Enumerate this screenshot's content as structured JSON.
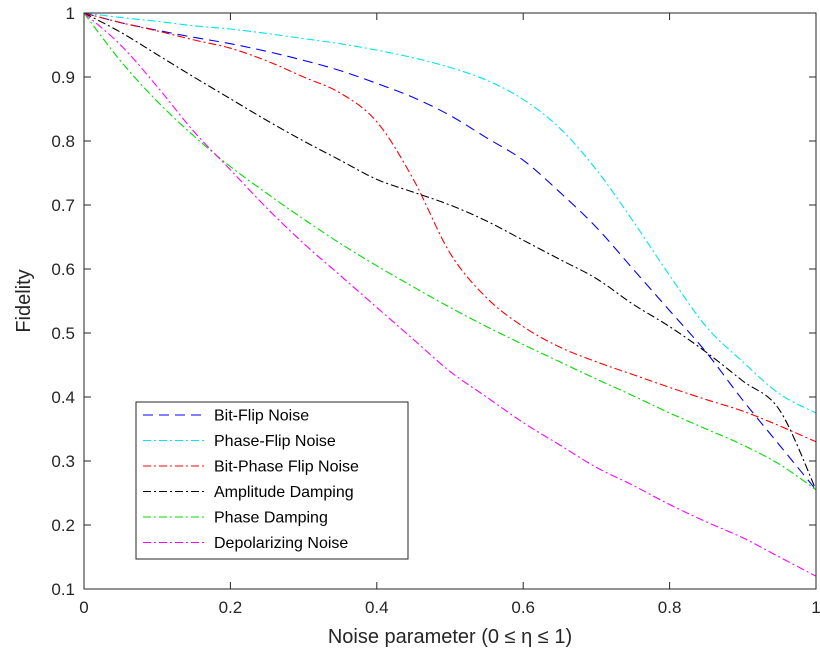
{
  "chart_data": {
    "type": "line",
    "title": "",
    "xlabel": "Noise parameter (0 ≤ η ≤ 1)",
    "ylabel": "Fidelity",
    "xlim": [
      0,
      1
    ],
    "ylim": [
      0.1,
      1
    ],
    "xticks": [
      "0",
      "0.2",
      "0.4",
      "0.6",
      "0.8",
      "1"
    ],
    "yticks": [
      "0.1",
      "0.2",
      "0.3",
      "0.4",
      "0.5",
      "0.6",
      "0.7",
      "0.8",
      "0.9",
      "1"
    ],
    "grid": false,
    "legend_position": "bottom-left",
    "x": [
      0,
      0.05,
      0.1,
      0.15,
      0.2,
      0.25,
      0.3,
      0.35,
      0.4,
      0.45,
      0.5,
      0.55,
      0.6,
      0.65,
      0.7,
      0.75,
      0.8,
      0.85,
      0.9,
      0.95,
      1
    ],
    "series": [
      {
        "name": "Bit-Flip Noise",
        "color": "#0000ff",
        "dash": "dash",
        "values": [
          1.0,
          0.985,
          0.973,
          0.962,
          0.952,
          0.94,
          0.926,
          0.91,
          0.89,
          0.868,
          0.84,
          0.805,
          0.77,
          0.72,
          0.665,
          0.6,
          0.535,
          0.47,
          0.395,
          0.325,
          0.255
        ]
      },
      {
        "name": "Phase-Flip Noise",
        "color": "#00e5ee",
        "dash": "dashdot",
        "values": [
          1.0,
          0.993,
          0.987,
          0.98,
          0.975,
          0.968,
          0.96,
          0.952,
          0.942,
          0.93,
          0.915,
          0.895,
          0.865,
          0.82,
          0.755,
          0.675,
          0.59,
          0.51,
          0.455,
          0.405,
          0.375
        ]
      },
      {
        "name": "Bit-Phase Flip Noise",
        "color": "#ff0000",
        "dash": "dashdot",
        "values": [
          1.0,
          0.985,
          0.972,
          0.958,
          0.945,
          0.925,
          0.9,
          0.875,
          0.83,
          0.74,
          0.625,
          0.555,
          0.51,
          0.478,
          0.455,
          0.435,
          0.415,
          0.396,
          0.378,
          0.355,
          0.33
        ]
      },
      {
        "name": "Amplitude Damping",
        "color": "#000000",
        "dash": "dashdot",
        "values": [
          1.0,
          0.97,
          0.935,
          0.9,
          0.866,
          0.832,
          0.8,
          0.77,
          0.74,
          0.72,
          0.7,
          0.675,
          0.645,
          0.615,
          0.585,
          0.545,
          0.51,
          0.47,
          0.425,
          0.38,
          0.255
        ]
      },
      {
        "name": "Phase Damping",
        "color": "#00dd00",
        "dash": "dashdot",
        "values": [
          1.0,
          0.925,
          0.862,
          0.808,
          0.76,
          0.718,
          0.678,
          0.64,
          0.605,
          0.572,
          0.54,
          0.51,
          0.482,
          0.455,
          0.428,
          0.402,
          0.375,
          0.35,
          0.325,
          0.295,
          0.255
        ]
      },
      {
        "name": "Depolarizing Noise",
        "color": "#ff00ff",
        "dash": "dashdot",
        "values": [
          1.0,
          0.95,
          0.885,
          0.815,
          0.755,
          0.695,
          0.64,
          0.59,
          0.54,
          0.49,
          0.44,
          0.4,
          0.36,
          0.325,
          0.29,
          0.262,
          0.232,
          0.205,
          0.18,
          0.15,
          0.12
        ]
      }
    ]
  }
}
